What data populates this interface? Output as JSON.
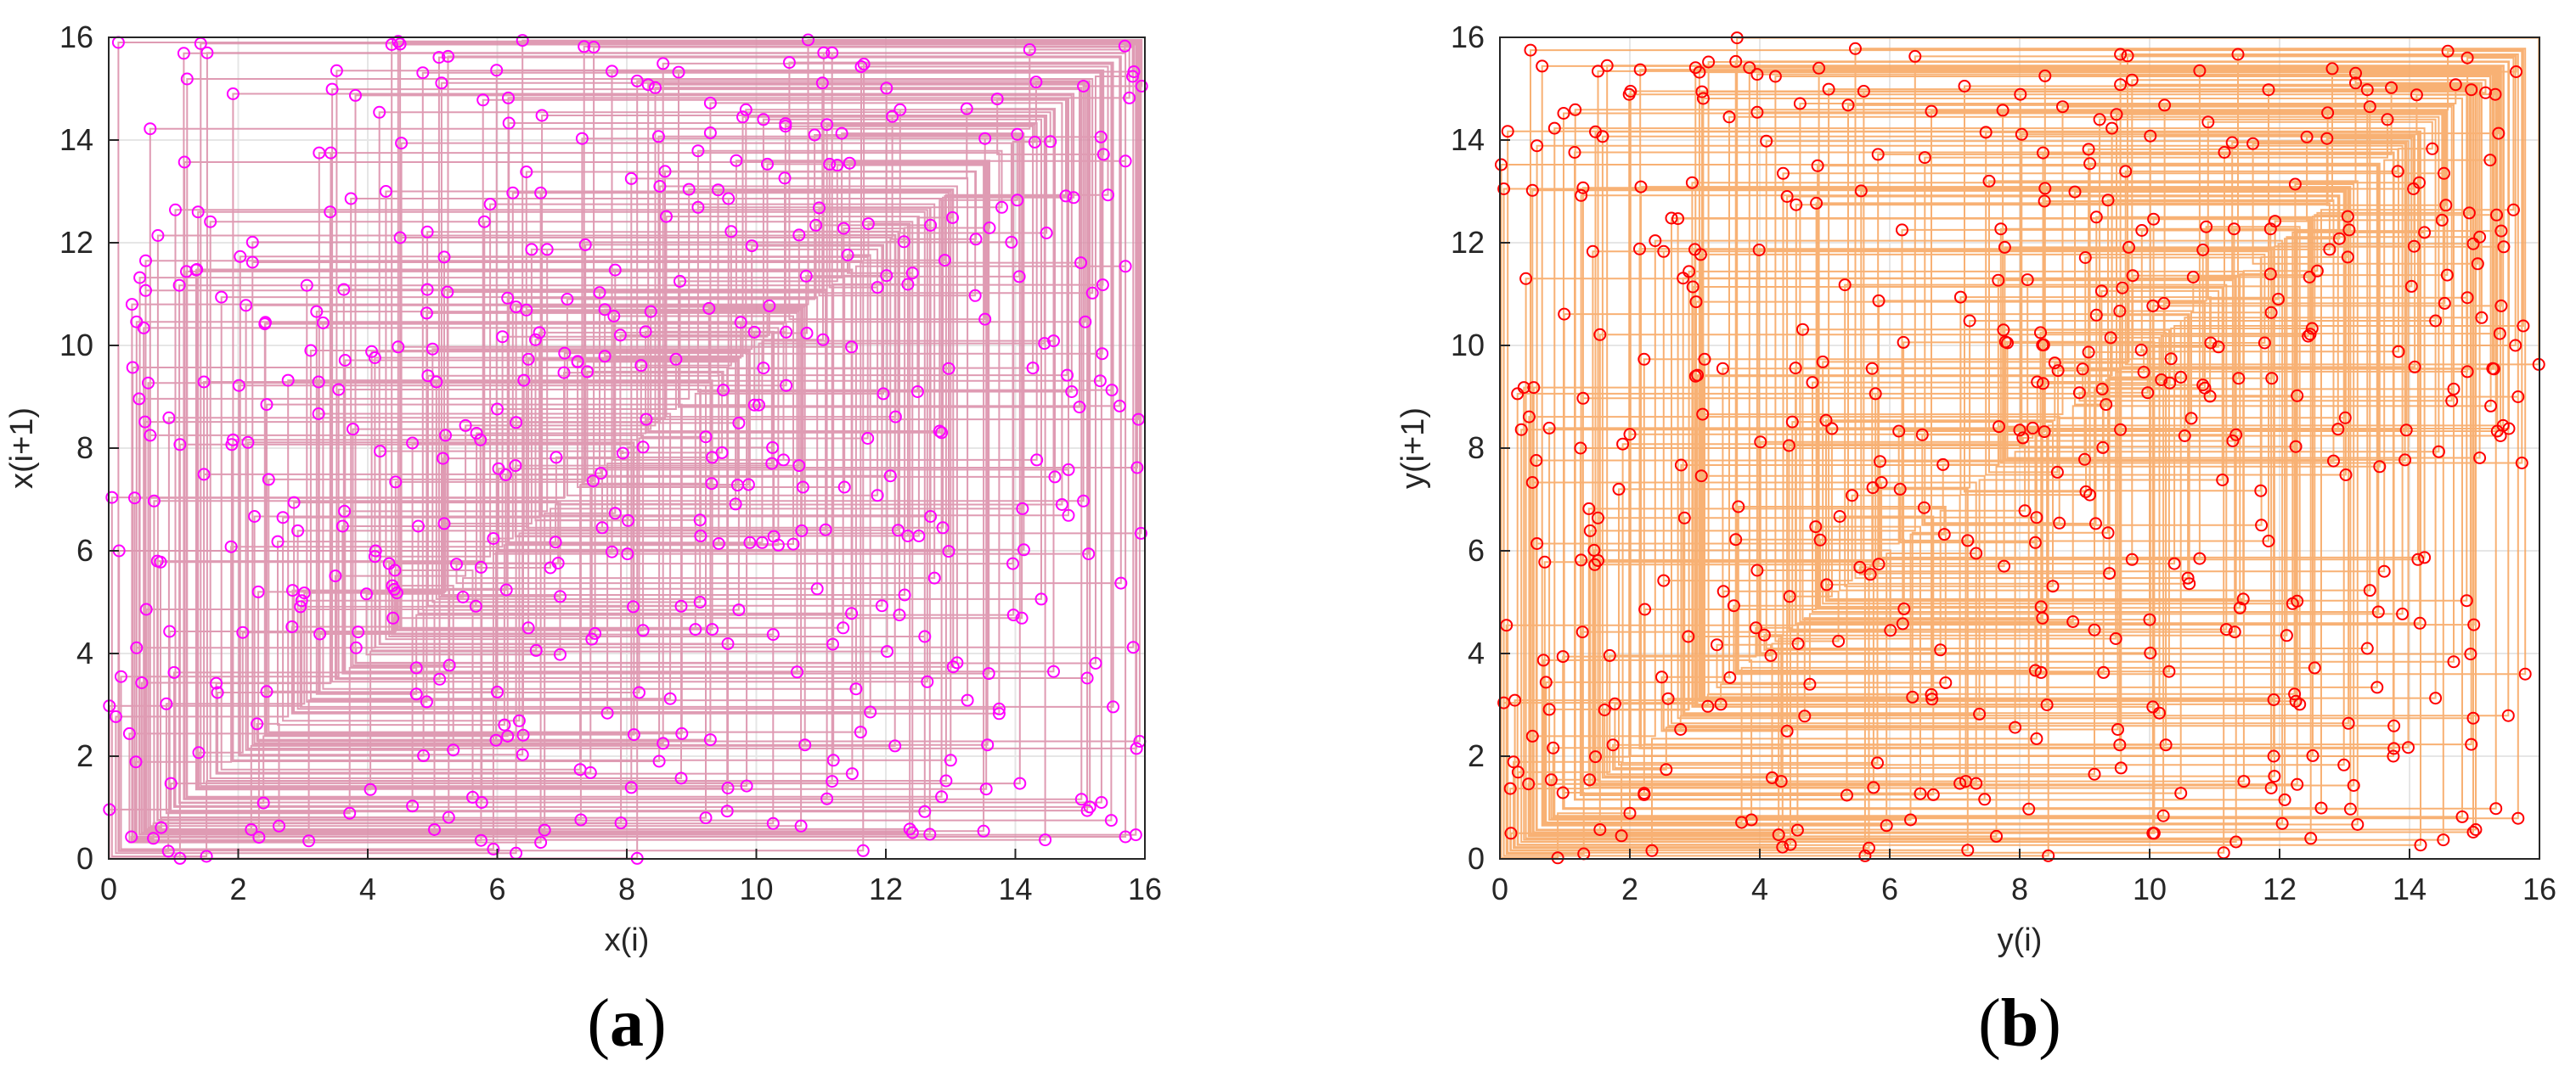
{
  "chart_data": [
    {
      "type": "cobweb-scatter",
      "panel_label": "(a)",
      "panel_letter": "a",
      "xlabel": "x(i)",
      "ylabel": "x(i+1)",
      "xlim": [
        0,
        16
      ],
      "ylim": [
        0,
        16
      ],
      "xticks": [
        "0",
        "2",
        "4",
        "6",
        "8",
        "10",
        "12",
        "14",
        "16"
      ],
      "yticks": [
        "0",
        "2",
        "4",
        "6",
        "8",
        "10",
        "12",
        "14",
        "16"
      ],
      "grid": true,
      "line_color": "#d98aa6",
      "marker_color": "#ff00ff",
      "marker": "circle",
      "n_points": 512,
      "seed": 11
    },
    {
      "type": "cobweb-scatter",
      "panel_label": "(b)",
      "panel_letter": "b",
      "xlabel": "y(i)",
      "ylabel": "y(i+1)",
      "xlim": [
        0,
        16
      ],
      "ylim": [
        0,
        16
      ],
      "xticks": [
        "0",
        "2",
        "4",
        "6",
        "8",
        "10",
        "12",
        "14",
        "16"
      ],
      "yticks": [
        "0",
        "2",
        "4",
        "6",
        "8",
        "10",
        "12",
        "14",
        "16"
      ],
      "grid": true,
      "line_color": "#f7a35c",
      "marker_color": "#ff0000",
      "marker": "circle",
      "n_points": 512,
      "seed": 29
    }
  ]
}
